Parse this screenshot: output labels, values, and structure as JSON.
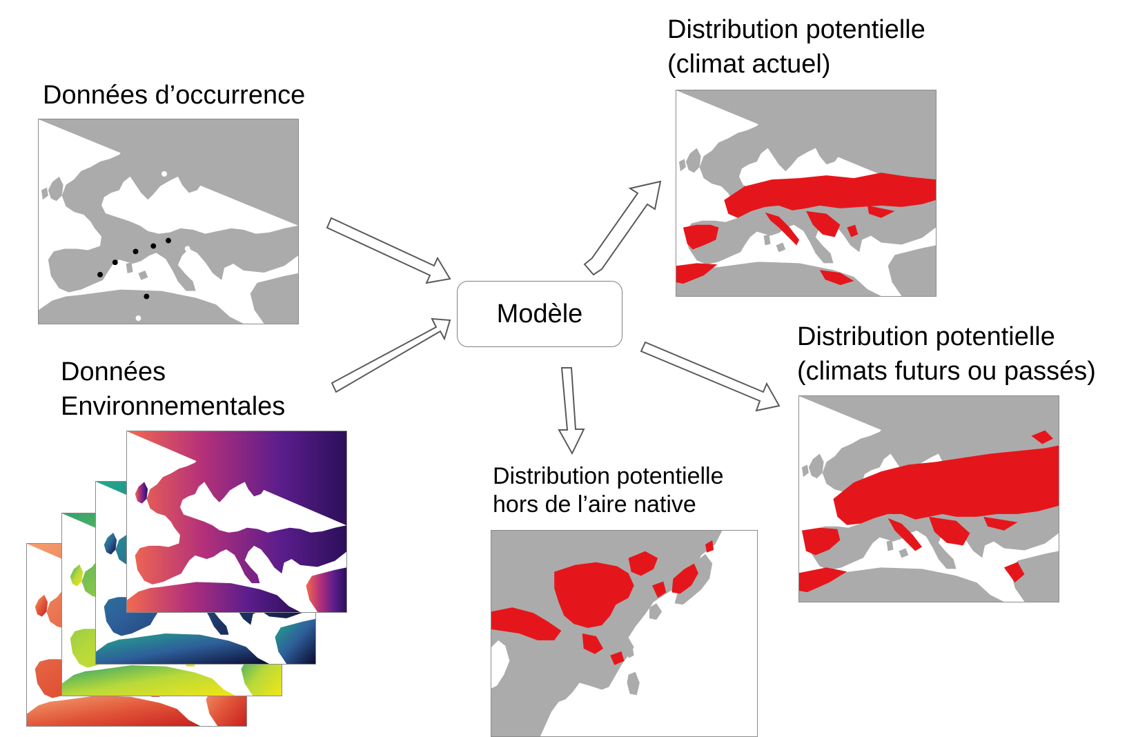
{
  "labels": {
    "occurrence": "Données d’occurrence",
    "env_line1": "Données",
    "env_line2": "Environnementales",
    "model": "Modèle",
    "current_line1": "Distribution potentielle",
    "current_line2": "(climat actuel)",
    "future_line1": "Distribution potentielle",
    "future_line2": "(climats futurs ou passés)",
    "native_line1": "Distribution potentielle",
    "native_line2": "hors de l’aire native"
  },
  "colors": {
    "land": "#ababab",
    "sea": "#ffffff",
    "presence": "#e5161b",
    "occurrence_point": "#000000",
    "absence_point": "#ffffff",
    "arrow_stroke": "#595959",
    "layer_palettes": [
      "magma",
      "viridis",
      "yellow-green",
      "orange-red"
    ]
  },
  "icons": {
    "arrow": "block-arrow-icon",
    "map": "europe-map-icon",
    "asia_map": "east-asia-map-icon"
  }
}
